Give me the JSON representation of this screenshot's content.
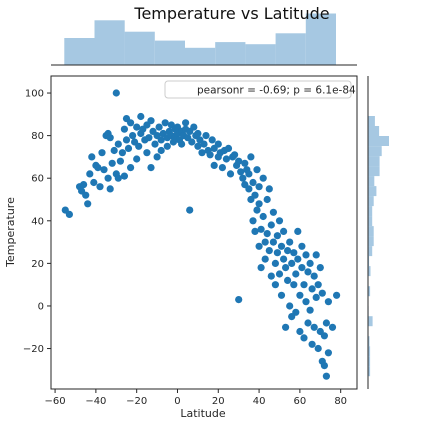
{
  "chart_data": {
    "type": "scatter",
    "title": "Temperature vs Latitude",
    "xlabel": "Latitude",
    "ylabel": "Temperature",
    "xlim": [
      -62,
      88
    ],
    "ylim": [
      -39,
      108
    ],
    "xticks": [
      -60,
      -40,
      -20,
      0,
      20,
      40,
      60,
      80
    ],
    "yticks": [
      -20,
      0,
      20,
      40,
      60,
      80,
      100
    ],
    "legend": {
      "text": "pearsonr = -0.69; p = 6.1e-84",
      "placement": "top-right"
    },
    "colors": {
      "points": "#1f77b4",
      "histogram": "#a6c8e2"
    },
    "marginal_x_hist": {
      "bin_edges": [
        -55.5,
        -40.7,
        -25.9,
        -11.1,
        3.7,
        18.5,
        33.3,
        48.1,
        62.9,
        77.7
      ],
      "relative_heights": [
        0.52,
        0.86,
        0.64,
        0.47,
        0.33,
        0.44,
        0.4,
        0.61,
        0.99
      ]
    },
    "marginal_y_hist": {
      "bin_edges": [
        -33,
        -28.3,
        -23.6,
        -18.9,
        -14.2,
        -9.5,
        -4.8,
        -0.1,
        4.6,
        9.3,
        14.0,
        18.7,
        23.4,
        28.1,
        32.8,
        37.5,
        42.2,
        46.9,
        51.6,
        56.3,
        61.0,
        65.7,
        70.4,
        75.1,
        79.8,
        84.5,
        89.2
      ],
      "relative_heights": [
        0.1,
        0.1,
        0.1,
        0.07,
        0.0,
        0.22,
        0.03,
        0.0,
        0.1,
        0.0,
        0.12,
        0.05,
        0.2,
        0.27,
        0.27,
        0.2,
        0.2,
        0.27,
        0.4,
        0.3,
        0.55,
        0.55,
        0.65,
        1.0,
        0.53,
        0.33,
        0.0
      ]
    },
    "points": [
      [
        -55,
        45
      ],
      [
        -53,
        43
      ],
      [
        -48,
        56
      ],
      [
        -47,
        54
      ],
      [
        -46,
        57
      ],
      [
        -45,
        52
      ],
      [
        -44,
        48
      ],
      [
        -43,
        62
      ],
      [
        -42,
        70
      ],
      [
        -41,
        58
      ],
      [
        -40,
        66
      ],
      [
        -39,
        65
      ],
      [
        -38,
        56
      ],
      [
        -37,
        72
      ],
      [
        -36,
        64
      ],
      [
        -35,
        80
      ],
      [
        -34,
        81
      ],
      [
        -34,
        60
      ],
      [
        -33,
        55
      ],
      [
        -33,
        79
      ],
      [
        -32,
        67
      ],
      [
        -31,
        73
      ],
      [
        -30,
        100
      ],
      [
        -30,
        62
      ],
      [
        -29,
        60
      ],
      [
        -29,
        76
      ],
      [
        -28,
        68
      ],
      [
        -27,
        72
      ],
      [
        -26,
        83
      ],
      [
        -26,
        61
      ],
      [
        -25,
        88
      ],
      [
        -25,
        78
      ],
      [
        -24,
        74
      ],
      [
        -23,
        86
      ],
      [
        -23,
        65
      ],
      [
        -22,
        80
      ],
      [
        -21,
        77
      ],
      [
        -20,
        84
      ],
      [
        -20,
        69
      ],
      [
        -19,
        75
      ],
      [
        -18,
        89
      ],
      [
        -18,
        81
      ],
      [
        -17,
        83
      ],
      [
        -16,
        78
      ],
      [
        -15,
        85
      ],
      [
        -15,
        72
      ],
      [
        -14,
        79
      ],
      [
        -13,
        87
      ],
      [
        -13,
        65
      ],
      [
        -12,
        82
      ],
      [
        -11,
        76
      ],
      [
        -10,
        80
      ],
      [
        -10,
        70
      ],
      [
        -9,
        84
      ],
      [
        -8,
        78
      ],
      [
        -8,
        73
      ],
      [
        -7,
        81
      ],
      [
        -6,
        86
      ],
      [
        -5,
        79
      ],
      [
        -5,
        75
      ],
      [
        -4,
        82
      ],
      [
        -3,
        80
      ],
      [
        -3,
        85
      ],
      [
        -2,
        77
      ],
      [
        -1,
        83
      ],
      [
        -1,
        79
      ],
      [
        0,
        81
      ],
      [
        0,
        84
      ],
      [
        1,
        78
      ],
      [
        2,
        82
      ],
      [
        2,
        76
      ],
      [
        3,
        80
      ],
      [
        4,
        86
      ],
      [
        4,
        83
      ],
      [
        5,
        79
      ],
      [
        6,
        45
      ],
      [
        6,
        82
      ],
      [
        7,
        77
      ],
      [
        8,
        84
      ],
      [
        9,
        80
      ],
      [
        10,
        75
      ],
      [
        10,
        81
      ],
      [
        11,
        78
      ],
      [
        12,
        72
      ],
      [
        13,
        76
      ],
      [
        14,
        80
      ],
      [
        15,
        73
      ],
      [
        16,
        71
      ],
      [
        17,
        78
      ],
      [
        18,
        66
      ],
      [
        18,
        74
      ],
      [
        20,
        76
      ],
      [
        20,
        70
      ],
      [
        21,
        72
      ],
      [
        22,
        65
      ],
      [
        23,
        73
      ],
      [
        24,
        69
      ],
      [
        25,
        74
      ],
      [
        26,
        62
      ],
      [
        27,
        70
      ],
      [
        28,
        71
      ],
      [
        29,
        66
      ],
      [
        30,
        68
      ],
      [
        30,
        3
      ],
      [
        31,
        63
      ],
      [
        32,
        60
      ],
      [
        33,
        67
      ],
      [
        33,
        57
      ],
      [
        34,
        64
      ],
      [
        35,
        55
      ],
      [
        35,
        62
      ],
      [
        36,
        70
      ],
      [
        36,
        50
      ],
      [
        37,
        58
      ],
      [
        37,
        40
      ],
      [
        38,
        52
      ],
      [
        38,
        35
      ],
      [
        39,
        64
      ],
      [
        39,
        45
      ],
      [
        40,
        48
      ],
      [
        40,
        56
      ],
      [
        40,
        28
      ],
      [
        41,
        36
      ],
      [
        41,
        18
      ],
      [
        42,
        60
      ],
      [
        42,
        42
      ],
      [
        43,
        30
      ],
      [
        43,
        22
      ],
      [
        44,
        50
      ],
      [
        44,
        34
      ],
      [
        45,
        55
      ],
      [
        45,
        26
      ],
      [
        46,
        38
      ],
      [
        46,
        14
      ],
      [
        47,
        44
      ],
      [
        47,
        30
      ],
      [
        48,
        20
      ],
      [
        48,
        10
      ],
      [
        49,
        33
      ],
      [
        49,
        25
      ],
      [
        50,
        40
      ],
      [
        50,
        15
      ],
      [
        51,
        28
      ],
      [
        51,
        5
      ],
      [
        52,
        22
      ],
      [
        52,
        35
      ],
      [
        53,
        18
      ],
      [
        53,
        -10
      ],
      [
        54,
        26
      ],
      [
        54,
        12
      ],
      [
        55,
        30
      ],
      [
        55,
        0
      ],
      [
        56,
        20
      ],
      [
        56,
        -5
      ],
      [
        57,
        10
      ],
      [
        57,
        25
      ],
      [
        58,
        15
      ],
      [
        58,
        -3
      ],
      [
        59,
        22
      ],
      [
        59,
        35
      ],
      [
        60,
        5
      ],
      [
        60,
        -12
      ],
      [
        61,
        18
      ],
      [
        61,
        28
      ],
      [
        62,
        10
      ],
      [
        62,
        -15
      ],
      [
        63,
        2
      ],
      [
        63,
        24
      ],
      [
        64,
        -8
      ],
      [
        64,
        16
      ],
      [
        65,
        20
      ],
      [
        65,
        -2
      ],
      [
        66,
        8
      ],
      [
        66,
        -18
      ],
      [
        67,
        14
      ],
      [
        67,
        -10
      ],
      [
        68,
        24
      ],
      [
        68,
        4
      ],
      [
        69,
        -20
      ],
      [
        69,
        10
      ],
      [
        70,
        -12
      ],
      [
        70,
        18
      ],
      [
        71,
        -26
      ],
      [
        71,
        6
      ],
      [
        72,
        -28
      ],
      [
        72,
        -14
      ],
      [
        73,
        -8
      ],
      [
        73,
        -33
      ],
      [
        74,
        -22
      ],
      [
        74,
        2
      ],
      [
        76,
        -10
      ],
      [
        78,
        5
      ]
    ]
  }
}
